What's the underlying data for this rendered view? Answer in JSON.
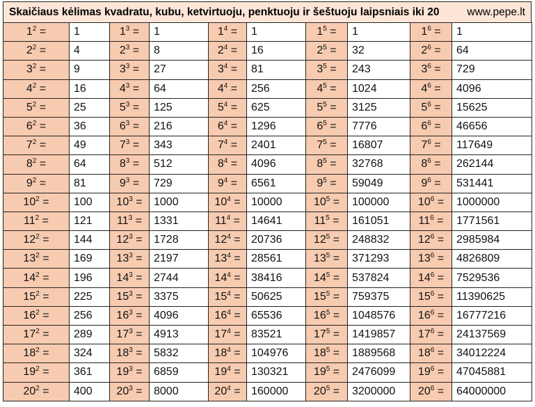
{
  "title": "Skaičiaus kėlimas kvadratu, kubu, ketvirtuoju, penktuoju ir šeštuoju laipsniais iki 20",
  "site": "www.pepe.lt",
  "sign": "=",
  "exponents": [
    "2",
    "3",
    "4",
    "5",
    "6"
  ],
  "rows": [
    {
      "base": "1",
      "results": [
        1,
        1,
        1,
        1,
        1
      ]
    },
    {
      "base": "2",
      "results": [
        4,
        8,
        16,
        32,
        64
      ]
    },
    {
      "base": "3",
      "results": [
        9,
        27,
        81,
        243,
        729
      ]
    },
    {
      "base": "4",
      "results": [
        16,
        64,
        256,
        1024,
        4096
      ]
    },
    {
      "base": "5",
      "results": [
        25,
        125,
        625,
        3125,
        15625
      ]
    },
    {
      "base": "6",
      "results": [
        36,
        216,
        1296,
        7776,
        46656
      ]
    },
    {
      "base": "7",
      "results": [
        49,
        343,
        2401,
        16807,
        117649
      ]
    },
    {
      "base": "8",
      "results": [
        64,
        512,
        4096,
        32768,
        262144
      ]
    },
    {
      "base": "9",
      "results": [
        81,
        729,
        6561,
        59049,
        531441
      ]
    },
    {
      "base": "10",
      "results": [
        100,
        1000,
        10000,
        100000,
        1000000
      ]
    },
    {
      "base": "11",
      "results": [
        121,
        1331,
        14641,
        161051,
        1771561
      ]
    },
    {
      "base": "12",
      "results": [
        144,
        1728,
        20736,
        248832,
        2985984
      ]
    },
    {
      "base": "13",
      "results": [
        169,
        2197,
        28561,
        371293,
        4826809
      ]
    },
    {
      "base": "14",
      "results": [
        196,
        2744,
        38416,
        537824,
        7529536
      ]
    },
    {
      "base": "15",
      "results": [
        225,
        3375,
        50625,
        759375,
        11390625
      ]
    },
    {
      "base": "16",
      "results": [
        256,
        4096,
        65536,
        1048576,
        16777216
      ]
    },
    {
      "base": "17",
      "results": [
        289,
        4913,
        83521,
        1419857,
        24137569
      ]
    },
    {
      "base": "18",
      "results": [
        324,
        5832,
        104976,
        1889568,
        34012224
      ]
    },
    {
      "base": "19",
      "results": [
        361,
        6859,
        130321,
        2476099,
        47045881
      ]
    },
    {
      "base": "20",
      "results": [
        400,
        8000,
        160000,
        3200000,
        64000000
      ]
    }
  ]
}
